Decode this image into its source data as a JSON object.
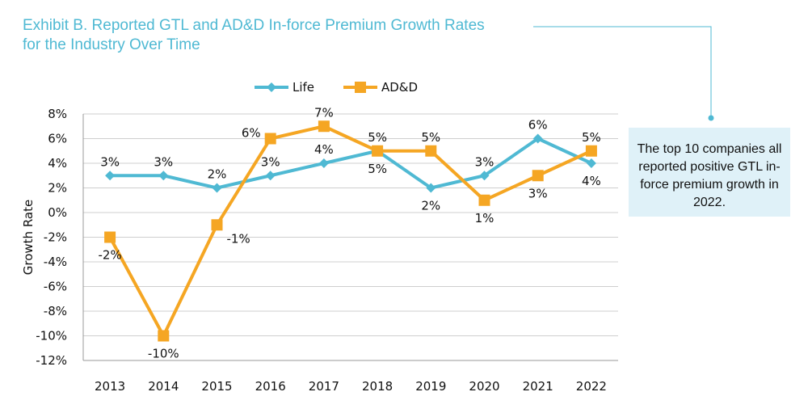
{
  "title_line1": "Exhibit B. Reported GTL and AD&D In-force Premium Growth Rates",
  "title_line2": "for the Industry Over Time",
  "callout_text": "The top 10 companies all reported positive GTL in-force premium growth in 2022.",
  "chart_data": {
    "type": "line",
    "categories": [
      "2013",
      "2014",
      "2015",
      "2016",
      "2017",
      "2018",
      "2019",
      "2020",
      "2021",
      "2022"
    ],
    "ylabel": "Growth Rate",
    "ylim": [
      -12,
      8
    ],
    "yticks": [
      8,
      6,
      4,
      2,
      0,
      -2,
      -4,
      -6,
      -8,
      -10,
      -12
    ],
    "ytick_labels": [
      "8%",
      "6%",
      "4%",
      "2%",
      "0%",
      "-2%",
      "-4%",
      "-6%",
      "-8%",
      "-10%",
      "-12%"
    ],
    "grid": true,
    "legend_position": "top",
    "series": [
      {
        "name": "Life",
        "color": "#4fb9d3",
        "marker": "diamond",
        "values": [
          3,
          3,
          2,
          3,
          4,
          5,
          2,
          3,
          6,
          4
        ],
        "labels": [
          "3%",
          "3%",
          "2%",
          "3%",
          "4%",
          "5%",
          "2%",
          "3%",
          "6%",
          "4%"
        ],
        "label_positions": [
          "above",
          "above",
          "above",
          "above",
          "above",
          "below",
          "below",
          "above",
          "above",
          "below"
        ]
      },
      {
        "name": "AD&D",
        "color": "#f5a623",
        "marker": "square",
        "values": [
          -2,
          -10,
          -1,
          6,
          7,
          5,
          5,
          1,
          3,
          5
        ],
        "labels": [
          "-2%",
          "-10%",
          "-1%",
          "6%",
          "7%",
          "5%",
          "5%",
          "1%",
          "3%",
          "5%"
        ],
        "label_positions": [
          "below",
          "below",
          "right",
          "left",
          "above",
          "above",
          "above",
          "below",
          "below",
          "above"
        ]
      }
    ]
  }
}
